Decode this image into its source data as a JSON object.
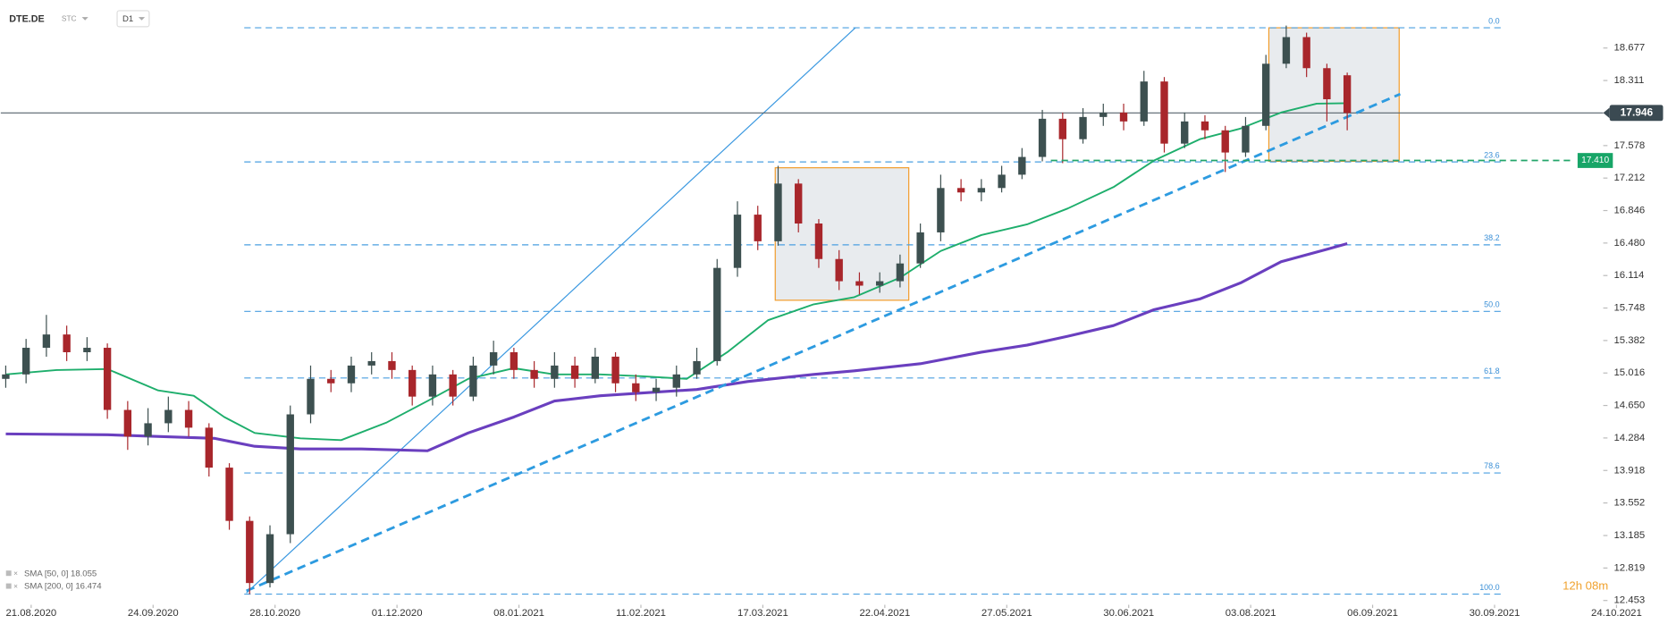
{
  "chart_data": {
    "type": "candlestick",
    "title": "DTE.DE",
    "market": "STC",
    "interval": "D1",
    "timer": "12h 08m",
    "up_color": "#3d5050",
    "down_color": "#a8262b",
    "x": [
      -5,
      -1,
      3,
      7,
      11,
      15,
      19,
      23,
      27,
      31,
      35,
      39,
      43,
      47,
      51,
      55,
      59,
      63,
      67,
      71,
      75,
      79,
      83,
      87,
      91,
      95,
      99,
      103,
      107,
      111,
      115,
      119,
      123,
      127,
      131,
      135,
      139,
      143,
      147,
      151,
      155,
      159,
      163,
      167,
      171,
      175,
      179,
      183,
      187,
      191,
      195,
      199,
      203,
      207,
      211,
      215,
      219,
      223,
      227,
      231,
      235,
      239,
      243,
      247,
      251,
      255,
      259
    ],
    "open": [
      14.95,
      15.0,
      15.3,
      15.45,
      15.25,
      15.3,
      14.6,
      14.3,
      14.45,
      14.6,
      14.4,
      13.95,
      13.35,
      12.65,
      13.2,
      14.55,
      14.95,
      14.9,
      15.1,
      15.15,
      15.05,
      14.75,
      15.0,
      14.75,
      15.1,
      15.25,
      15.05,
      14.95,
      15.1,
      14.95,
      15.2,
      14.9,
      14.8,
      14.85,
      15.0,
      15.15,
      16.2,
      16.8,
      16.5,
      17.15,
      16.7,
      16.3,
      16.05,
      16.0,
      16.05,
      16.25,
      16.6,
      17.1,
      17.05,
      17.1,
      17.25,
      17.45,
      17.88,
      17.65,
      17.9,
      17.95,
      17.85,
      18.3,
      17.6,
      17.85,
      17.75,
      17.5,
      17.8,
      18.5,
      18.8,
      18.45,
      18.37
    ],
    "high": [
      15.1,
      15.4,
      15.67,
      15.55,
      15.42,
      15.35,
      14.7,
      14.62,
      14.75,
      14.7,
      14.45,
      14.0,
      13.4,
      13.3,
      14.65,
      15.1,
      15.05,
      15.2,
      15.25,
      15.25,
      15.1,
      15.1,
      15.05,
      15.2,
      15.38,
      15.3,
      15.15,
      15.25,
      15.2,
      15.3,
      15.25,
      15.0,
      14.95,
      15.1,
      15.3,
      16.3,
      16.95,
      16.9,
      17.35,
      17.2,
      16.75,
      16.4,
      16.15,
      16.15,
      16.35,
      16.7,
      17.25,
      17.2,
      17.2,
      17.35,
      17.55,
      17.98,
      17.95,
      18.0,
      18.05,
      18.05,
      18.42,
      18.35,
      17.95,
      17.92,
      17.8,
      17.9,
      18.6,
      18.93,
      18.85,
      18.5,
      18.4
    ],
    "low": [
      14.85,
      14.9,
      15.2,
      15.15,
      15.15,
      14.5,
      14.15,
      14.2,
      14.35,
      14.3,
      13.85,
      13.25,
      12.525,
      12.6,
      13.1,
      14.45,
      14.8,
      14.8,
      15.0,
      14.95,
      14.65,
      14.65,
      14.65,
      14.7,
      15.0,
      14.95,
      14.85,
      14.85,
      14.85,
      14.9,
      14.8,
      14.7,
      14.7,
      14.75,
      14.95,
      15.1,
      16.1,
      16.4,
      16.45,
      16.6,
      16.2,
      15.95,
      15.9,
      15.92,
      15.98,
      16.2,
      16.5,
      16.95,
      16.95,
      17.05,
      17.2,
      17.4,
      17.38,
      17.6,
      17.8,
      17.75,
      17.8,
      17.5,
      17.55,
      17.65,
      17.28,
      17.45,
      17.75,
      18.45,
      18.35,
      17.85,
      17.75
    ],
    "close": [
      15.0,
      15.3,
      15.45,
      15.25,
      15.3,
      14.6,
      14.3,
      14.45,
      14.6,
      14.4,
      13.95,
      13.35,
      12.65,
      13.2,
      14.55,
      14.95,
      14.9,
      15.1,
      15.15,
      15.05,
      14.75,
      15.0,
      14.75,
      15.1,
      15.25,
      15.05,
      14.95,
      15.1,
      14.95,
      15.2,
      14.9,
      14.8,
      14.85,
      15.0,
      15.15,
      16.2,
      16.8,
      16.5,
      17.15,
      16.7,
      16.3,
      16.05,
      16.0,
      16.05,
      16.25,
      16.6,
      17.1,
      17.05,
      17.1,
      17.25,
      17.45,
      17.88,
      17.65,
      17.9,
      17.95,
      17.85,
      18.3,
      17.6,
      17.85,
      17.75,
      17.5,
      17.8,
      18.5,
      18.8,
      18.45,
      18.1,
      17.946
    ],
    "indicators": [
      {
        "name": "SMA [50, 0] 18.055",
        "color": "#1eae6c",
        "x": [
          -5,
          5,
          15,
          25,
          32,
          38,
          44,
          53,
          61,
          70,
          78,
          86,
          95,
          103,
          112,
          120,
          129,
          137,
          145,
          154,
          162,
          171,
          179,
          187,
          196,
          204,
          213,
          221,
          230,
          238,
          246,
          253,
          259
        ],
        "values": [
          15.0,
          15.05,
          15.06,
          14.82,
          14.76,
          14.52,
          14.34,
          14.28,
          14.26,
          14.46,
          14.7,
          14.95,
          15.07,
          15.0,
          15.0,
          14.98,
          14.95,
          15.25,
          15.61,
          15.79,
          15.87,
          16.09,
          16.39,
          16.57,
          16.69,
          16.87,
          17.11,
          17.41,
          17.65,
          17.77,
          17.95,
          18.05,
          18.055
        ]
      },
      {
        "name": "SMA [200, 0] 16.474",
        "color": "#6a3fbf",
        "x": [
          -5,
          15,
          36,
          44,
          53,
          65,
          78,
          86,
          95,
          103,
          112,
          120,
          131,
          141,
          154,
          162,
          175,
          187,
          196,
          204,
          213,
          221,
          230,
          238,
          246,
          255,
          259
        ],
        "values": [
          14.33,
          14.32,
          14.28,
          14.19,
          14.16,
          14.16,
          14.14,
          14.34,
          14.52,
          14.7,
          14.76,
          14.79,
          14.83,
          14.92,
          15.0,
          15.04,
          15.12,
          15.25,
          15.33,
          15.43,
          15.55,
          15.73,
          15.85,
          16.03,
          16.27,
          16.41,
          16.474
        ]
      }
    ],
    "fib_levels": [
      {
        "label": "0.0",
        "value": 18.905
      },
      {
        "label": "23.6",
        "value": 17.394
      },
      {
        "label": "38.2",
        "value": 16.46
      },
      {
        "label": "50.0",
        "value": 15.71
      },
      {
        "label": "61.8",
        "value": 14.96
      },
      {
        "label": "78.6",
        "value": 13.89
      },
      {
        "label": "100.0",
        "value": 12.525
      }
    ],
    "level_line": {
      "value": 17.41,
      "label": "17.410"
    },
    "last_price": 17.946,
    "xlim": [
      -6,
      322
    ],
    "ylim": [
      12.405,
      19.218
    ],
    "xticks": [
      {
        "value": 0,
        "label": "21.08.2020"
      },
      {
        "value": 24,
        "label": "24.09.2020"
      },
      {
        "value": 48,
        "label": "28.10.2020"
      },
      {
        "value": 72,
        "label": "01.12.2020"
      },
      {
        "value": 96,
        "label": "08.01.2021"
      },
      {
        "value": 120,
        "label": "11.02.2021"
      },
      {
        "value": 144,
        "label": "17.03.2021"
      },
      {
        "value": 168,
        "label": "22.04.2021"
      },
      {
        "value": 192,
        "label": "27.05.2021"
      },
      {
        "value": 216,
        "label": "30.06.2021"
      },
      {
        "value": 240,
        "label": "03.08.2021"
      },
      {
        "value": 264,
        "label": "06.09.2021"
      },
      {
        "value": 288,
        "label": "30.09.2021"
      },
      {
        "value": 312,
        "label": "24.10.2021"
      }
    ],
    "yticks": [
      12.453,
      12.819,
      13.185,
      13.552,
      13.918,
      14.284,
      {
        "value": 14.65,
        "label": "14.650"
      },
      15.016,
      15.382,
      15.748,
      16.114,
      {
        "value": 16.48,
        "label": "16.480"
      },
      16.846,
      17.212,
      17.578,
      18.311,
      18.677
    ]
  }
}
